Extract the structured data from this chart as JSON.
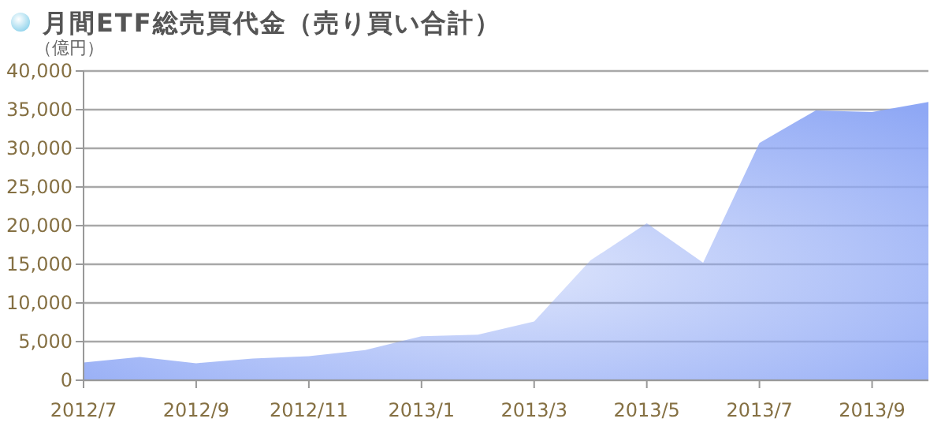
{
  "chart_data": {
    "type": "area",
    "title": "月間ETF総売買代金（売り買い合計）",
    "ylabel": "（億円）",
    "x": [
      "2012-07",
      "2012-08",
      "2012-09",
      "2012-10",
      "2012-11",
      "2012-12",
      "2013-01",
      "2013-02",
      "2013-03",
      "2013-04",
      "2013-05",
      "2013-06",
      "2013-07",
      "2013-08",
      "2013-09",
      "2013-10"
    ],
    "series": [
      {
        "color": "#8fa8f5",
        "values": [
          2300,
          3000,
          2200,
          2800,
          3100,
          3900,
          5700,
          5900,
          7600,
          15500,
          20300,
          15200,
          30700,
          34900,
          34700,
          36000
        ]
      }
    ],
    "xlim": [
      "2012-07",
      "2013-10"
    ],
    "xticks": [
      {
        "value": "2012-07",
        "label": "2012/7"
      },
      {
        "value": "2012-09",
        "label": "2012/9"
      },
      {
        "value": "2012-11",
        "label": "2012/11"
      },
      {
        "value": "2013-01",
        "label": "2013/1"
      },
      {
        "value": "2013-03",
        "label": "2013/3"
      },
      {
        "value": "2013-05",
        "label": "2013/5"
      },
      {
        "value": "2013-07",
        "label": "2013/7"
      },
      {
        "value": "2013-09",
        "label": "2013/9"
      }
    ],
    "ylim": [
      0,
      40000
    ],
    "yticks": [
      {
        "value": 0,
        "label": "0"
      },
      {
        "value": 5000,
        "label": "5,000"
      },
      {
        "value": 10000,
        "label": "10,000"
      },
      {
        "value": 15000,
        "label": "15,000"
      },
      {
        "value": 20000,
        "label": "20,000"
      },
      {
        "value": 25000,
        "label": "25,000"
      },
      {
        "value": 30000,
        "label": "30,000"
      },
      {
        "value": 35000,
        "label": "35,000"
      },
      {
        "value": 40000,
        "label": "40,000"
      }
    ],
    "grid": "y"
  }
}
